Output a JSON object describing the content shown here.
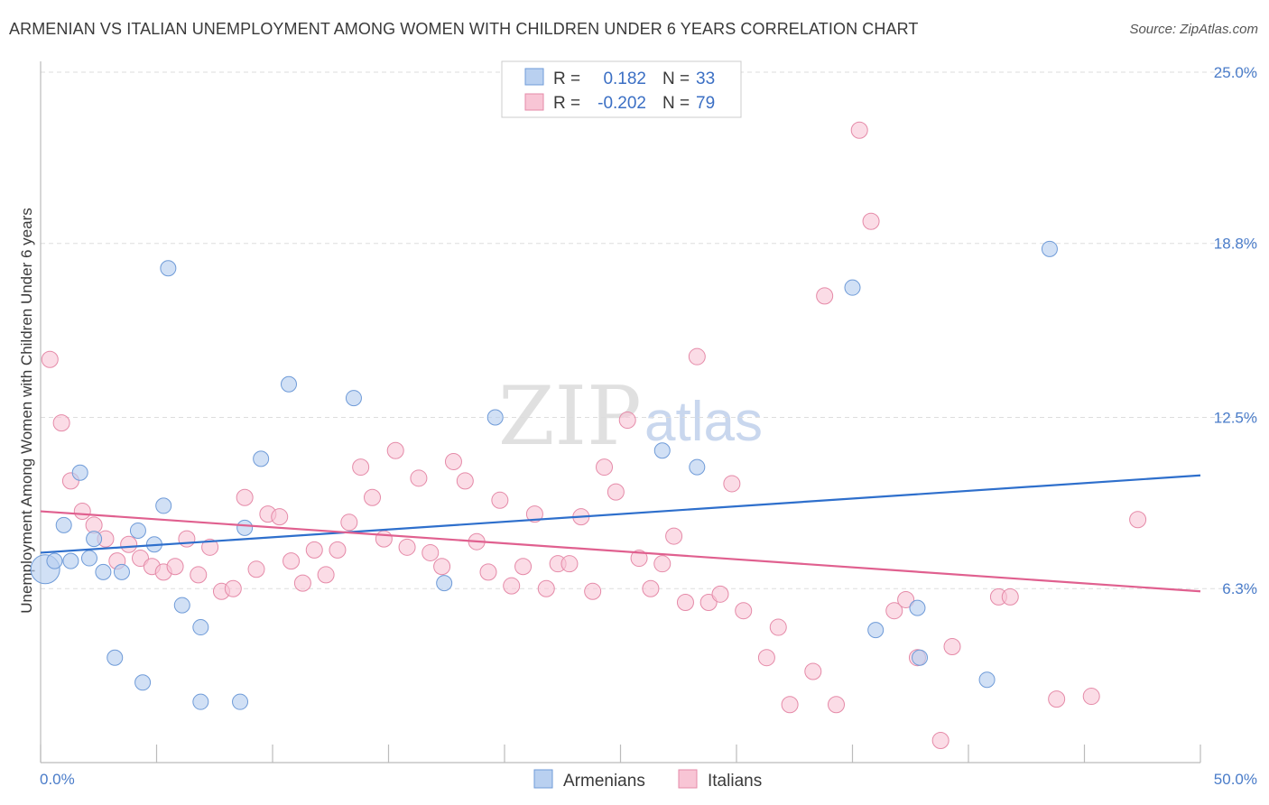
{
  "title": "ARMENIAN VS ITALIAN UNEMPLOYMENT AMONG WOMEN WITH CHILDREN UNDER 6 YEARS CORRELATION CHART",
  "source": "Source: ZipAtlas.com",
  "watermark": {
    "zip": "ZIP",
    "atlas": "atlas"
  },
  "colors": {
    "armenian_fill": "#b9d0f0",
    "armenian_stroke": "#6f9bd8",
    "armenian_line": "#2e6fcc",
    "italian_fill": "#f8c5d5",
    "italian_stroke": "#e58aa8",
    "italian_line": "#e0608f",
    "tick_text": "#4a7cc9",
    "grid": "#dddddd"
  },
  "legend": {
    "rows": [
      {
        "r_label": "R =",
        "r_value": "0.182",
        "n_label": "N =",
        "n_value": "33"
      },
      {
        "r_label": "R =",
        "r_value": "-0.202",
        "n_label": "N =",
        "n_value": "79"
      }
    ]
  },
  "bottom_legend": [
    "Armenians",
    "Italians"
  ],
  "chart_data": {
    "type": "scatter",
    "title": "ARMENIAN VS ITALIAN UNEMPLOYMENT AMONG WOMEN WITH CHILDREN UNDER 6 YEARS CORRELATION CHART",
    "xlabel": "",
    "ylabel": "Unemployment Among Women with Children Under 6 years",
    "xlim": [
      0,
      50
    ],
    "ylim": [
      0,
      25
    ],
    "x_tick_labels": [
      "0.0%",
      "50.0%"
    ],
    "y_ticks": [
      6.3,
      12.5,
      18.8,
      25.0
    ],
    "y_tick_labels": [
      "6.3%",
      "12.5%",
      "18.8%",
      "25.0%"
    ],
    "grid": "horizontal dashed",
    "series": [
      {
        "name": "Armenians",
        "r": 0.182,
        "n": 33,
        "trend": {
          "x": [
            0,
            50
          ],
          "y": [
            7.6,
            10.4
          ]
        },
        "points": [
          [
            0.2,
            7.0
          ],
          [
            0.6,
            7.3
          ],
          [
            1.0,
            8.6
          ],
          [
            1.3,
            7.3
          ],
          [
            1.7,
            10.5
          ],
          [
            2.1,
            7.4
          ],
          [
            2.3,
            8.1
          ],
          [
            2.7,
            6.9
          ],
          [
            3.2,
            3.8
          ],
          [
            3.5,
            6.9
          ],
          [
            4.2,
            8.4
          ],
          [
            4.4,
            2.9
          ],
          [
            4.9,
            7.9
          ],
          [
            5.3,
            9.3
          ],
          [
            5.5,
            17.9
          ],
          [
            6.1,
            5.7
          ],
          [
            6.9,
            4.9
          ],
          [
            6.9,
            2.2
          ],
          [
            8.6,
            2.2
          ],
          [
            8.8,
            8.5
          ],
          [
            9.5,
            11.0
          ],
          [
            10.7,
            13.7
          ],
          [
            13.5,
            13.2
          ],
          [
            17.4,
            6.5
          ],
          [
            19.6,
            12.5
          ],
          [
            26.8,
            11.3
          ],
          [
            28.3,
            10.7
          ],
          [
            35.0,
            17.2
          ],
          [
            36.0,
            4.8
          ],
          [
            37.8,
            5.6
          ],
          [
            37.9,
            3.8
          ],
          [
            40.8,
            3.0
          ],
          [
            43.5,
            18.6
          ]
        ]
      },
      {
        "name": "Italians",
        "r": -0.202,
        "n": 79,
        "trend": {
          "x": [
            0,
            50
          ],
          "y": [
            9.1,
            6.2
          ]
        },
        "points": [
          [
            0.4,
            14.6
          ],
          [
            0.9,
            12.3
          ],
          [
            1.3,
            10.2
          ],
          [
            1.8,
            9.1
          ],
          [
            2.3,
            8.6
          ],
          [
            2.8,
            8.1
          ],
          [
            3.3,
            7.3
          ],
          [
            3.8,
            7.9
          ],
          [
            4.3,
            7.4
          ],
          [
            4.8,
            7.1
          ],
          [
            5.3,
            6.9
          ],
          [
            5.8,
            7.1
          ],
          [
            6.3,
            8.1
          ],
          [
            6.8,
            6.8
          ],
          [
            7.3,
            7.8
          ],
          [
            7.8,
            6.2
          ],
          [
            8.3,
            6.3
          ],
          [
            8.8,
            9.6
          ],
          [
            9.3,
            7.0
          ],
          [
            9.8,
            9.0
          ],
          [
            10.3,
            8.9
          ],
          [
            10.8,
            7.3
          ],
          [
            11.3,
            6.5
          ],
          [
            11.8,
            7.7
          ],
          [
            12.3,
            6.8
          ],
          [
            12.8,
            7.7
          ],
          [
            13.3,
            8.7
          ],
          [
            13.8,
            10.7
          ],
          [
            14.3,
            9.6
          ],
          [
            14.8,
            8.1
          ],
          [
            15.3,
            11.3
          ],
          [
            15.8,
            7.8
          ],
          [
            16.3,
            10.3
          ],
          [
            16.8,
            7.6
          ],
          [
            17.3,
            7.1
          ],
          [
            17.8,
            10.9
          ],
          [
            18.3,
            10.2
          ],
          [
            18.8,
            8.0
          ],
          [
            19.3,
            6.9
          ],
          [
            19.8,
            9.5
          ],
          [
            20.3,
            6.4
          ],
          [
            20.8,
            7.1
          ],
          [
            21.3,
            9.0
          ],
          [
            21.8,
            6.3
          ],
          [
            22.3,
            7.2
          ],
          [
            22.8,
            7.2
          ],
          [
            23.3,
            8.9
          ],
          [
            23.8,
            6.2
          ],
          [
            24.3,
            10.7
          ],
          [
            24.8,
            9.8
          ],
          [
            25.3,
            12.4
          ],
          [
            25.8,
            7.4
          ],
          [
            26.3,
            6.3
          ],
          [
            26.8,
            7.2
          ],
          [
            27.3,
            8.2
          ],
          [
            27.8,
            5.8
          ],
          [
            28.3,
            14.7
          ],
          [
            28.8,
            5.8
          ],
          [
            29.3,
            6.1
          ],
          [
            29.8,
            10.1
          ],
          [
            30.3,
            5.5
          ],
          [
            31.3,
            3.8
          ],
          [
            31.8,
            4.9
          ],
          [
            32.3,
            2.1
          ],
          [
            33.3,
            3.3
          ],
          [
            33.8,
            16.9
          ],
          [
            34.3,
            2.1
          ],
          [
            35.3,
            22.9
          ],
          [
            35.8,
            19.6
          ],
          [
            36.8,
            5.5
          ],
          [
            37.3,
            5.9
          ],
          [
            37.8,
            3.8
          ],
          [
            38.8,
            0.8
          ],
          [
            39.3,
            4.2
          ],
          [
            41.3,
            6.0
          ],
          [
            41.8,
            6.0
          ],
          [
            43.8,
            2.3
          ],
          [
            45.3,
            2.4
          ],
          [
            47.3,
            8.8
          ]
        ]
      }
    ]
  }
}
